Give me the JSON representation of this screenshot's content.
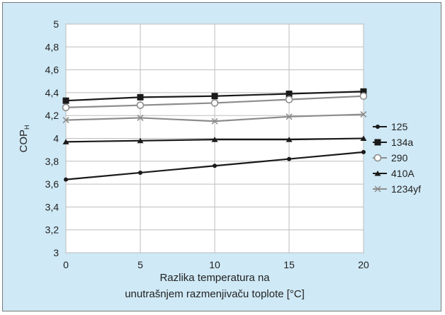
{
  "chart_data": {
    "type": "line",
    "title": "",
    "xlabel_lines": [
      "Razlika temperatura na",
      "unutrašnjem razmenjivaču toplote [°C]"
    ],
    "ylabel": "COP",
    "ylabel_sub": "H",
    "x": [
      0,
      5,
      10,
      15,
      20
    ],
    "xlim": [
      0,
      20
    ],
    "ylim": [
      3,
      5
    ],
    "xticks": [
      "0",
      "5",
      "10",
      "15",
      "20"
    ],
    "yticks": [
      "3",
      "3,2",
      "3,4",
      "3,6",
      "3,8",
      "4",
      "4,2",
      "4,4",
      "4,6",
      "4,8",
      "5"
    ],
    "grid": true,
    "legend_position": "right",
    "series": [
      {
        "name": "125",
        "marker": "dot",
        "color": "#1a1a1a",
        "values": [
          3.64,
          3.7,
          3.76,
          3.82,
          3.88
        ]
      },
      {
        "name": "134a",
        "marker": "square",
        "color": "#1a1a1a",
        "values": [
          4.33,
          4.36,
          4.37,
          4.39,
          4.41
        ]
      },
      {
        "name": "290",
        "marker": "circle",
        "color": "#8c8c8c",
        "values": [
          4.27,
          4.29,
          4.31,
          4.34,
          4.37
        ]
      },
      {
        "name": "410A",
        "marker": "triangle",
        "color": "#1a1a1a",
        "values": [
          3.97,
          3.98,
          3.99,
          3.99,
          4.0
        ]
      },
      {
        "name": "1234yf",
        "marker": "cross",
        "color": "#8c8c8c",
        "values": [
          4.16,
          4.18,
          4.15,
          4.19,
          4.21
        ]
      }
    ]
  }
}
